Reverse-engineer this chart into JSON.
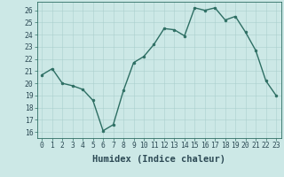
{
  "x": [
    0,
    1,
    2,
    3,
    4,
    5,
    6,
    7,
    8,
    9,
    10,
    11,
    12,
    13,
    14,
    15,
    16,
    17,
    18,
    19,
    20,
    21,
    22,
    23
  ],
  "y": [
    20.7,
    21.2,
    20.0,
    19.8,
    19.5,
    18.6,
    16.1,
    16.6,
    19.4,
    21.7,
    22.2,
    23.2,
    24.5,
    24.4,
    23.9,
    26.2,
    26.0,
    26.2,
    25.2,
    25.5,
    24.2,
    22.7,
    20.2,
    19.0
  ],
  "line_color": "#2d6e63",
  "marker": "o",
  "marker_size": 2.0,
  "bg_color": "#cce8e6",
  "grid_color": "#aacfcd",
  "xlabel": "Humidex (Indice chaleur)",
  "xlim": [
    -0.5,
    23.5
  ],
  "ylim": [
    15.5,
    26.7
  ],
  "yticks": [
    16,
    17,
    18,
    19,
    20,
    21,
    22,
    23,
    24,
    25,
    26
  ],
  "xticks": [
    0,
    1,
    2,
    3,
    4,
    5,
    6,
    7,
    8,
    9,
    10,
    11,
    12,
    13,
    14,
    15,
    16,
    17,
    18,
    19,
    20,
    21,
    22,
    23
  ],
  "xtick_labels": [
    "0",
    "1",
    "2",
    "3",
    "4",
    "5",
    "6",
    "7",
    "8",
    "9",
    "10",
    "11",
    "12",
    "13",
    "14",
    "15",
    "16",
    "17",
    "18",
    "19",
    "20",
    "21",
    "22",
    "23"
  ],
  "tick_fontsize": 5.8,
  "xlabel_fontsize": 7.5,
  "line_width": 1.0
}
